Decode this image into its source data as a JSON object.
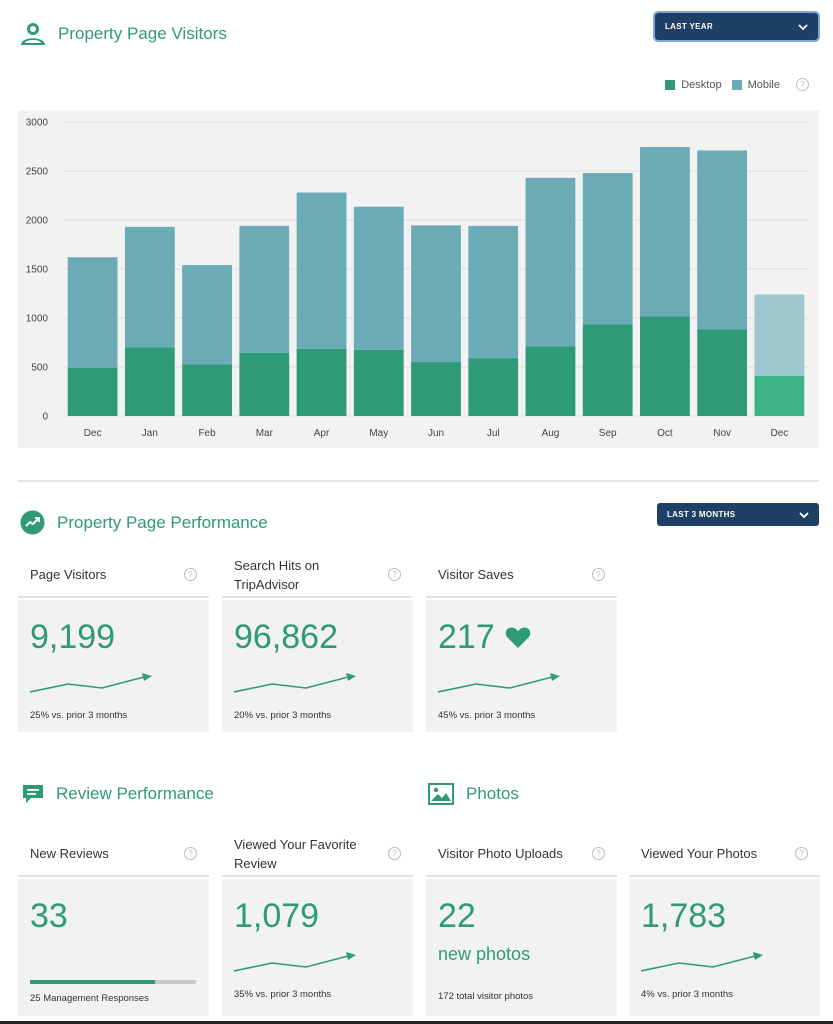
{
  "visitors": {
    "title": "Property Page Visitors",
    "dropdown": "LAST YEAR",
    "legend": [
      {
        "label": "Desktop",
        "color": "#2e9a78"
      },
      {
        "label": "Mobile",
        "color": "#6aabb5"
      }
    ],
    "help": "?"
  },
  "chart_data": {
    "type": "bar",
    "stacked": true,
    "categories": [
      "Dec",
      "Jan",
      "Feb",
      "Mar",
      "Apr",
      "May",
      "Jun",
      "Jul",
      "Aug",
      "Sep",
      "Oct",
      "Nov",
      "Dec"
    ],
    "series": [
      {
        "name": "Desktop",
        "values": [
          490,
          700,
          525,
          645,
          685,
          675,
          550,
          590,
          710,
          935,
          1015,
          885,
          410
        ]
      },
      {
        "name": "Mobile",
        "values": [
          1130,
          1230,
          1015,
          1295,
          1595,
          1460,
          1395,
          1350,
          1720,
          1545,
          1730,
          1825,
          830
        ]
      }
    ],
    "ylim": [
      0,
      3000
    ],
    "yticks": [
      0,
      500,
      1000,
      1500,
      2000,
      2500,
      3000
    ],
    "grid": true,
    "legend_position": "top-right"
  },
  "performance": {
    "title": "Property Page Performance",
    "dropdown": "LAST 3 MONTHS",
    "cards": [
      {
        "label": "Page Visitors",
        "value": "9,199",
        "note": "25% vs. prior 3 months"
      },
      {
        "label": "Search Hits on TripAdvisor",
        "value": "96,862",
        "note": "20% vs. prior 3 months"
      },
      {
        "label": "Visitor Saves",
        "value": "217",
        "note": "45% vs. prior 3 months"
      }
    ]
  },
  "reviews": {
    "title": "Review Performance",
    "new_label": "New Reviews",
    "new_value": "33",
    "responses_fraction": 0.75,
    "responses_note": "25 Management Responses",
    "fav_label": "Viewed Your Favorite Review",
    "fav_value": "1,079",
    "fav_note": "35% vs. prior 3 months"
  },
  "photos": {
    "title": "Photos",
    "uploads_label": "Visitor Photo Uploads",
    "uploads_value": "22",
    "uploads_sub": "new photos",
    "uploads_note": "172 total visitor photos",
    "viewed_label": "Viewed Your Photos",
    "viewed_value": "1,783",
    "viewed_note": "4% vs. prior 3 months"
  },
  "colors": {
    "accent": "#2e9a78",
    "mobile": "#6aabb5",
    "navy": "#1e3f66"
  }
}
